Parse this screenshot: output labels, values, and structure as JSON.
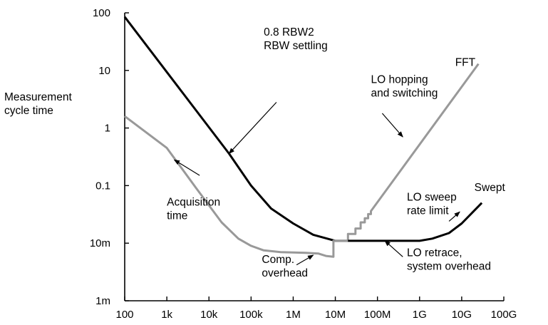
{
  "chart_data": {
    "type": "line",
    "title": "",
    "xlabel": "",
    "ylabel": "Measurement cycle time",
    "ylabel_lines": [
      "Measurement",
      "cycle time"
    ],
    "x_scale": "log",
    "y_scale": "log",
    "xlim": [
      100,
      100000000000
    ],
    "ylim": [
      0.001,
      100
    ],
    "grid": false,
    "legend": "none",
    "colors": {
      "black": "#000000",
      "gray": "#999999"
    },
    "x_ticks": [
      {
        "value": 100,
        "label": "100"
      },
      {
        "value": 1000,
        "label": "1k"
      },
      {
        "value": 10000,
        "label": "10k"
      },
      {
        "value": 100000,
        "label": "100k"
      },
      {
        "value": 1000000,
        "label": "1M"
      },
      {
        "value": 10000000,
        "label": "10M"
      },
      {
        "value": 100000000,
        "label": "100M"
      },
      {
        "value": 1000000000,
        "label": "1G"
      },
      {
        "value": 10000000000,
        "label": "10G"
      },
      {
        "value": 100000000000,
        "label": "100G"
      }
    ],
    "y_ticks": [
      {
        "value": 100,
        "label": "100"
      },
      {
        "value": 10,
        "label": "10"
      },
      {
        "value": 1,
        "label": "1"
      },
      {
        "value": 0.1,
        "label": "0.1"
      },
      {
        "value": 0.01,
        "label": "10m"
      },
      {
        "value": 0.001,
        "label": "1m"
      }
    ],
    "series": [
      {
        "color": "black",
        "points": [
          [
            100,
            85
          ],
          [
            30000,
            0.36
          ],
          [
            100000,
            0.1
          ],
          [
            300000,
            0.04
          ],
          [
            1000000,
            0.022
          ],
          [
            3000000,
            0.014
          ],
          [
            10000000,
            0.011
          ],
          [
            20000000,
            0.011
          ]
        ]
      },
      {
        "color": "gray",
        "points": [
          [
            100,
            1.6
          ],
          [
            1000,
            0.45
          ],
          [
            5000,
            0.09
          ],
          [
            20000,
            0.023
          ],
          [
            50000,
            0.012
          ],
          [
            100000,
            0.009
          ],
          [
            200000,
            0.0075
          ],
          [
            500000,
            0.007
          ],
          [
            2000000,
            0.0068
          ],
          [
            4000000,
            0.0066
          ],
          [
            6000000,
            0.006
          ],
          [
            9000000,
            0.0058
          ],
          [
            9000000,
            0.011
          ],
          [
            20000000,
            0.011
          ]
        ]
      },
      {
        "color": "gray",
        "points": [
          [
            20000000,
            0.011
          ],
          [
            20000000,
            0.0145
          ],
          [
            30000000,
            0.0145
          ],
          [
            30000000,
            0.018
          ],
          [
            40000000,
            0.018
          ],
          [
            40000000,
            0.023
          ],
          [
            50000000,
            0.023
          ],
          [
            50000000,
            0.027
          ],
          [
            60000000,
            0.027
          ],
          [
            60000000,
            0.032
          ],
          [
            70000000,
            0.032
          ],
          [
            70000000,
            0.036
          ],
          [
            25000000000,
            13
          ]
        ]
      },
      {
        "color": "black",
        "points": [
          [
            20000000,
            0.011
          ],
          [
            1000000000,
            0.011
          ],
          [
            2000000000,
            0.012
          ],
          [
            5000000000,
            0.015
          ],
          [
            10000000000,
            0.022
          ],
          [
            30000000000,
            0.05
          ]
        ]
      }
    ],
    "annotations": [
      {
        "lines": [
          "0.8 RBW2",
          "RBW settling"
        ],
        "anchor": "start",
        "text_at": [
          200000,
          40
        ],
        "arrow_from": [
          400000,
          2.8
        ],
        "arrow_to": [
          30000,
          0.36
        ]
      },
      {
        "lines": [
          "Acquisition",
          "time"
        ],
        "anchor": "start",
        "text_at": [
          1000,
          0.045
        ],
        "arrow_from": [
          6000,
          0.15
        ],
        "arrow_to": [
          1500,
          0.28
        ]
      },
      {
        "lines": [
          "Comp.",
          "overhead"
        ],
        "anchor": "start",
        "text_at": [
          180000,
          0.0045
        ],
        "arrow_from": [
          1200000,
          0.0042
        ],
        "arrow_to": [
          3000000,
          0.0062
        ]
      },
      {
        "lines": [
          "FFT"
        ],
        "anchor": "start",
        "text_at": [
          7000000000,
          12
        ],
        "arrow_from": null,
        "arrow_to": null
      },
      {
        "lines": [
          "LO hopping",
          "and switching"
        ],
        "anchor": "start",
        "text_at": [
          70000000,
          6
        ],
        "arrow_from": [
          130000000,
          1.8
        ],
        "arrow_to": [
          400000000,
          0.7
        ]
      },
      {
        "lines": [
          "LO sweep",
          "rate limit"
        ],
        "anchor": "start",
        "text_at": [
          500000000,
          0.055
        ],
        "arrow_from": [
          5000000000,
          0.024
        ],
        "arrow_to": [
          9000000000,
          0.035
        ]
      },
      {
        "lines": [
          "Swept"
        ],
        "anchor": "start",
        "text_at": [
          20000000000,
          0.08
        ],
        "arrow_from": null,
        "arrow_to": null
      },
      {
        "lines": [
          "LO retrace,",
          "system overhead"
        ],
        "anchor": "start",
        "text_at": [
          500000000,
          0.0059
        ],
        "arrow_from": [
          400000000,
          0.0058
        ],
        "arrow_to": [
          150000000,
          0.011
        ]
      }
    ]
  }
}
